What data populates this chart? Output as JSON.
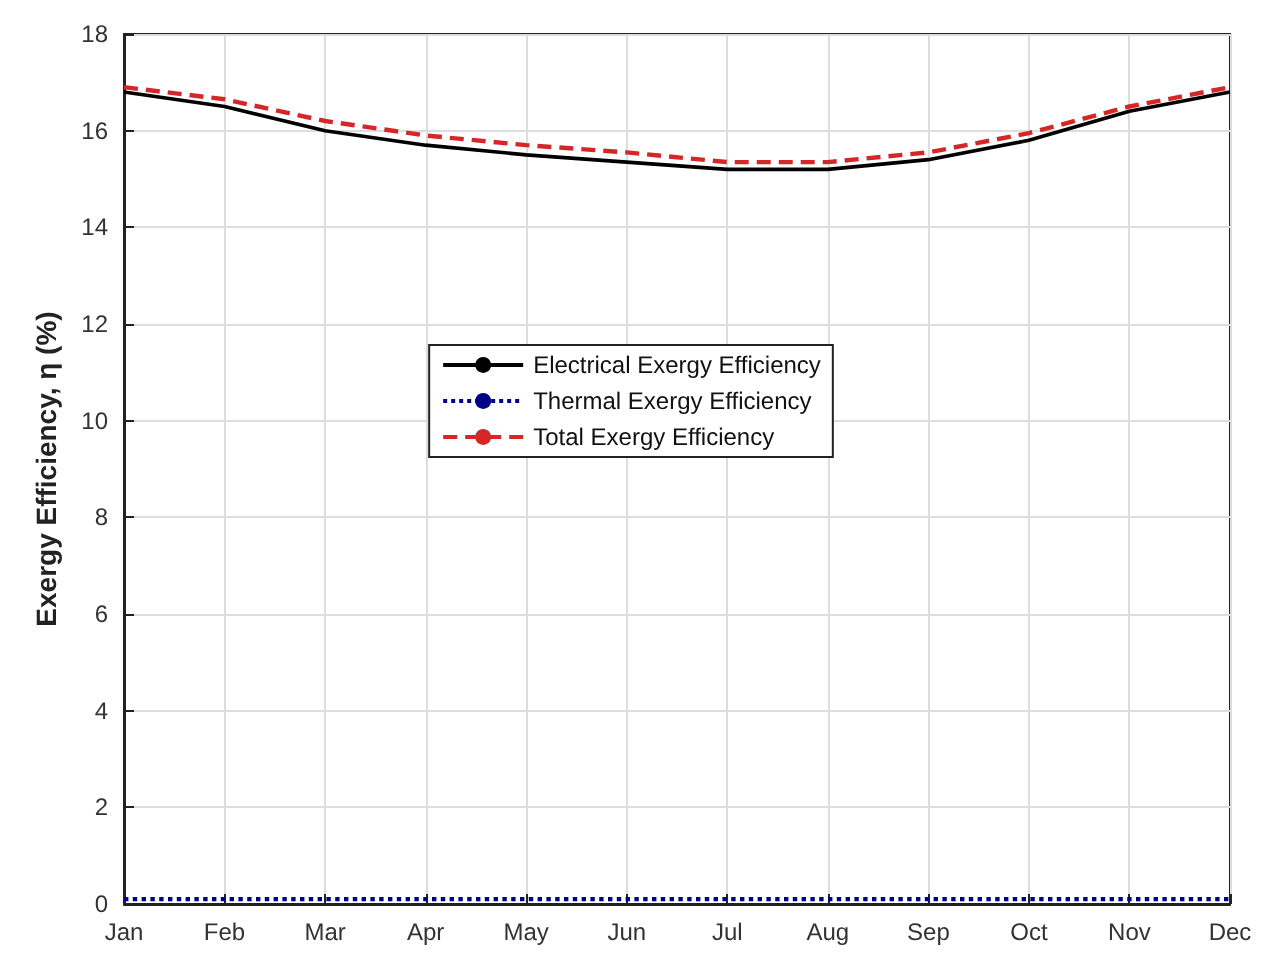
{
  "chart_data": {
    "type": "line",
    "ylabel": "Exergy Efficiency, η (%)",
    "categories": [
      "Jan",
      "Feb",
      "Mar",
      "Apr",
      "May",
      "Jun",
      "Jul",
      "Aug",
      "Sep",
      "Oct",
      "Nov",
      "Dec"
    ],
    "series": [
      {
        "name": "Electrical Exergy Efficiency",
        "color": "#000000",
        "line_style": "solid",
        "values": [
          16.8,
          16.5,
          16.0,
          15.7,
          15.5,
          15.35,
          15.2,
          15.2,
          15.4,
          15.8,
          16.4,
          16.8
        ]
      },
      {
        "name": "Thermal Exergy Efficiency",
        "color": "#00008b",
        "line_style": "dotted",
        "values": [
          0.1,
          0.1,
          0.1,
          0.1,
          0.1,
          0.1,
          0.1,
          0.1,
          0.1,
          0.1,
          0.1,
          0.1
        ]
      },
      {
        "name": "Total Exergy Efficiency",
        "color": "#d62728",
        "line_style": "dashed",
        "values": [
          16.9,
          16.65,
          16.2,
          15.9,
          15.7,
          15.55,
          15.35,
          15.35,
          15.55,
          15.95,
          16.5,
          16.9
        ]
      }
    ],
    "ylim": [
      0,
      18
    ],
    "yticks": [
      0,
      2,
      4,
      6,
      8,
      10,
      12,
      14,
      16,
      18
    ],
    "grid": true,
    "legend": "center",
    "marker": "none"
  }
}
